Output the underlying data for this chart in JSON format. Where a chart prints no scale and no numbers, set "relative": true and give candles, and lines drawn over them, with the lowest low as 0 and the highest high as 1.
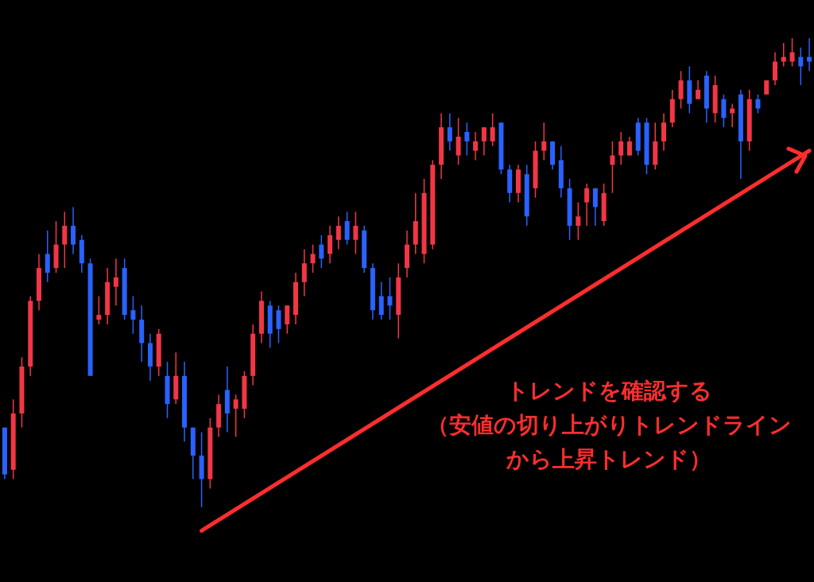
{
  "chart_data": {
    "type": "candlestick",
    "relative": true,
    "categories": [
      null,
      null,
      null,
      null,
      null,
      null,
      null,
      null,
      null,
      null,
      null,
      null,
      null,
      null,
      null,
      null,
      null,
      null,
      null,
      null,
      null,
      null,
      null,
      null,
      null,
      null,
      null,
      null,
      null,
      null,
      null,
      null,
      null,
      null,
      null,
      null,
      null,
      null,
      null,
      null,
      null,
      null,
      null,
      null,
      null,
      null,
      null,
      null,
      null,
      null,
      null,
      null,
      null,
      null,
      null,
      null,
      null,
      null,
      null,
      null,
      null,
      null,
      null,
      null,
      null,
      null,
      null,
      null,
      null,
      null,
      null,
      null,
      null,
      null,
      null,
      null,
      null,
      null,
      null,
      null,
      null,
      null,
      null,
      null,
      null,
      null,
      null,
      null,
      null,
      null,
      null,
      null,
      null,
      null,
      null
    ],
    "ohlc": [
      [
        0.17,
        0.17,
        0.06,
        0.07
      ],
      [
        0.08,
        0.23,
        0.06,
        0.2
      ],
      [
        0.2,
        0.32,
        0.17,
        0.3
      ],
      [
        0.3,
        0.45,
        0.28,
        0.44
      ],
      [
        0.44,
        0.54,
        0.42,
        0.51
      ],
      [
        0.54,
        0.59,
        0.48,
        0.5
      ],
      [
        0.51,
        0.61,
        0.5,
        0.56
      ],
      [
        0.56,
        0.63,
        0.51,
        0.6
      ],
      [
        0.6,
        0.64,
        0.54,
        0.56
      ],
      [
        0.57,
        0.58,
        0.5,
        0.52
      ],
      [
        0.52,
        0.53,
        0.28,
        0.28
      ],
      [
        0.4,
        0.45,
        0.39,
        0.41
      ],
      [
        0.41,
        0.51,
        0.39,
        0.48
      ],
      [
        0.47,
        0.53,
        0.43,
        0.49
      ],
      [
        0.51,
        0.53,
        0.4,
        0.41
      ],
      [
        0.42,
        0.45,
        0.37,
        0.4
      ],
      [
        0.4,
        0.43,
        0.31,
        0.35
      ],
      [
        0.35,
        0.37,
        0.27,
        0.3
      ],
      [
        0.3,
        0.38,
        0.28,
        0.37
      ],
      [
        0.28,
        0.31,
        0.19,
        0.22
      ],
      [
        0.23,
        0.33,
        0.22,
        0.28
      ],
      [
        0.28,
        0.31,
        0.14,
        0.17
      ],
      [
        0.17,
        0.17,
        0.06,
        0.11
      ],
      [
        0.11,
        0.16,
        0,
        0.06
      ],
      [
        0.06,
        0.19,
        0.04,
        0.17
      ],
      [
        0.17,
        0.24,
        0.15,
        0.22
      ],
      [
        0.25,
        0.3,
        0.16,
        0.2
      ],
      [
        0.21,
        0.24,
        0.15,
        0.23
      ],
      [
        0.21,
        0.29,
        0.19,
        0.28
      ],
      [
        0.28,
        0.39,
        0.26,
        0.37
      ],
      [
        0.37,
        0.46,
        0.35,
        0.44
      ],
      [
        0.43,
        0.44,
        0.34,
        0.37
      ],
      [
        0.42,
        0.43,
        0.35,
        0.38
      ],
      [
        0.39,
        0.43,
        0.37,
        0.43
      ],
      [
        0.41,
        0.5,
        0.39,
        0.48
      ],
      [
        0.48,
        0.55,
        0.45,
        0.52
      ],
      [
        0.52,
        0.56,
        0.5,
        0.54
      ],
      [
        0.56,
        0.58,
        0.51,
        0.53
      ],
      [
        0.54,
        0.6,
        0.52,
        0.58
      ],
      [
        0.57,
        0.62,
        0.55,
        0.6
      ],
      [
        0.61,
        0.63,
        0.56,
        0.57
      ],
      [
        0.57,
        0.63,
        0.54,
        0.6
      ],
      [
        0.59,
        0.6,
        0.5,
        0.51
      ],
      [
        0.51,
        0.52,
        0.4,
        0.42
      ],
      [
        0.45,
        0.48,
        0.4,
        0.41
      ],
      [
        0.45,
        0.49,
        0.4,
        0.43
      ],
      [
        0.41,
        0.52,
        0.36,
        0.49
      ],
      [
        0.51,
        0.59,
        0.49,
        0.56
      ],
      [
        0.56,
        0.67,
        0.54,
        0.61
      ],
      [
        0.54,
        0.7,
        0.52,
        0.67
      ],
      [
        0.56,
        0.74,
        0.55,
        0.73
      ],
      [
        0.73,
        0.84,
        0.7,
        0.81
      ],
      [
        0.81,
        0.84,
        0.76,
        0.78
      ],
      [
        0.75,
        0.83,
        0.73,
        0.79
      ],
      [
        0.8,
        0.82,
        0.75,
        0.78
      ],
      [
        0.76,
        0.8,
        0.74,
        0.78
      ],
      [
        0.78,
        0.81,
        0.75,
        0.81
      ],
      [
        0.78,
        0.84,
        0.77,
        0.81
      ],
      [
        0.82,
        0.82,
        0.71,
        0.72
      ],
      [
        0.72,
        0.73,
        0.65,
        0.67
      ],
      [
        0.67,
        0.73,
        0.65,
        0.72
      ],
      [
        0.71,
        0.73,
        0.6,
        0.62
      ],
      [
        0.68,
        0.78,
        0.66,
        0.76
      ],
      [
        0.76,
        0.82,
        0.74,
        0.78
      ],
      [
        0.78,
        0.78,
        0.72,
        0.73
      ],
      [
        0.74,
        0.77,
        0.66,
        0.68
      ],
      [
        0.68,
        0.7,
        0.57,
        0.6
      ],
      [
        0.6,
        0.65,
        0.57,
        0.62
      ],
      [
        0.65,
        0.69,
        0.6,
        0.68
      ],
      [
        0.68,
        0.68,
        0.6,
        0.64
      ],
      [
        0.61,
        0.69,
        0.6,
        0.67
      ],
      [
        0.73,
        0.78,
        0.67,
        0.75
      ],
      [
        0.75,
        0.8,
        0.73,
        0.78
      ],
      [
        0.75,
        0.79,
        0.75,
        0.78
      ],
      [
        0.82,
        0.83,
        0.75,
        0.76
      ],
      [
        0.82,
        0.83,
        0.71,
        0.73
      ],
      [
        0.73,
        0.82,
        0.72,
        0.78
      ],
      [
        0.78,
        0.84,
        0.76,
        0.82
      ],
      [
        0.82,
        0.89,
        0.81,
        0.87
      ],
      [
        0.87,
        0.93,
        0.85,
        0.91
      ],
      [
        0.91,
        0.94,
        0.84,
        0.86
      ],
      [
        0.87,
        0.91,
        0.87,
        0.89
      ],
      [
        0.92,
        0.93,
        0.82,
        0.85
      ],
      [
        0.84,
        0.92,
        0.82,
        0.9
      ],
      [
        0.87,
        0.88,
        0.81,
        0.83
      ],
      [
        0.84,
        0.86,
        0.81,
        0.85
      ],
      [
        0.88,
        0.89,
        0.7,
        0.78
      ],
      [
        0.78,
        0.89,
        0.76,
        0.87
      ],
      [
        0.87,
        0.88,
        0.84,
        0.85
      ],
      [
        0.88,
        0.91,
        0.88,
        0.91
      ],
      [
        0.91,
        0.97,
        0.9,
        0.95
      ],
      [
        0.95,
        0.99,
        0.94,
        0.96
      ],
      [
        0.95,
        1,
        0.94,
        0.97
      ],
      [
        0.96,
        0.98,
        0.9,
        0.94
      ],
      [
        0.96,
        1,
        0.93,
        0.95
      ]
    ],
    "colors": [
      "#2962ff",
      "#f23645",
      "#f23645",
      "#f23645",
      "#f23645",
      "#2962ff",
      "#f23645",
      "#f23645",
      "#2962ff",
      "#2962ff",
      "#2962ff",
      "#f23645",
      "#f23645",
      "#f23645",
      "#2962ff",
      "#2962ff",
      "#2962ff",
      "#2962ff",
      "#f23645",
      "#2962ff",
      "#f23645",
      "#2962ff",
      "#2962ff",
      "#2962ff",
      "#f23645",
      "#f23645",
      "#2962ff",
      "#f23645",
      "#f23645",
      "#f23645",
      "#f23645",
      "#2962ff",
      "#2962ff",
      "#f23645",
      "#f23645",
      "#f23645",
      "#f23645",
      "#2962ff",
      "#f23645",
      "#f23645",
      "#2962ff",
      "#f23645",
      "#2962ff",
      "#2962ff",
      "#2962ff",
      "#2962ff",
      "#f23645",
      "#f23645",
      "#f23645",
      "#f23645",
      "#f23645",
      "#f23645",
      "#2962ff",
      "#f23645",
      "#2962ff",
      "#f23645",
      "#f23645",
      "#f23645",
      "#2962ff",
      "#2962ff",
      "#f23645",
      "#2962ff",
      "#f23645",
      "#f23645",
      "#2962ff",
      "#2962ff",
      "#2962ff",
      "#f23645",
      "#f23645",
      "#2962ff",
      "#f23645",
      "#f23645",
      "#f23645",
      "#f23645",
      "#2962ff",
      "#2962ff",
      "#f23645",
      "#f23645",
      "#f23645",
      "#f23645",
      "#2962ff",
      "#f23645",
      "#2962ff",
      "#f23645",
      "#2962ff",
      "#f23645",
      "#2962ff",
      "#f23645",
      "#2962ff",
      "#f23645",
      "#f23645",
      "#f23645",
      "#f23645",
      "#2962ff",
      "#2962ff"
    ],
    "series": [
      {
        "type": "line",
        "color": "#ff2e2e",
        "values": [
          null,
          null,
          null,
          null,
          null,
          null,
          null,
          null,
          null,
          null,
          null,
          null,
          null,
          null,
          null,
          null,
          null,
          null,
          null,
          null,
          null,
          null,
          null,
          -0.05,
          null,
          null,
          null,
          null,
          null,
          null,
          null,
          null,
          null,
          null,
          null,
          null,
          null,
          null,
          null,
          null,
          null,
          null,
          null,
          null,
          null,
          null,
          null,
          null,
          null,
          null,
          null,
          null,
          null,
          null,
          null,
          null,
          null,
          null,
          null,
          null,
          null,
          null,
          null,
          null,
          null,
          null,
          null,
          null,
          null,
          null,
          null,
          null,
          null,
          null,
          null,
          null,
          null,
          null,
          null,
          null,
          null,
          null,
          null,
          null,
          null,
          null,
          null,
          null,
          null,
          null,
          null,
          null,
          null,
          null,
          0.76
        ]
      }
    ],
    "annotations": [
      "トレンドを確認する（安値の切り上がりトレンドラインから上昇トレンド）"
    ]
  }
}
